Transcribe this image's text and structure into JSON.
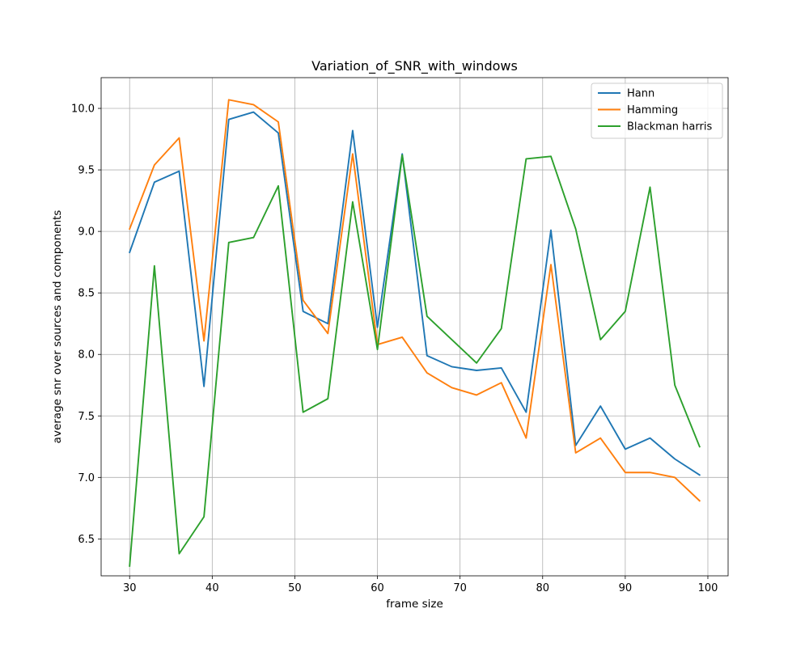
{
  "chart_data": {
    "type": "line",
    "title": "Variation_of_SNR_with_windows",
    "xlabel": "frame size",
    "ylabel": "average snr over sources and components",
    "xlim": [
      26.55,
      102.45
    ],
    "ylim": [
      6.2,
      10.25
    ],
    "xticks": [
      30,
      40,
      50,
      60,
      70,
      80,
      90,
      100
    ],
    "yticks": [
      6.5,
      7.0,
      7.5,
      8.0,
      8.5,
      9.0,
      9.5,
      10.0
    ],
    "x": [
      30,
      33,
      36,
      39,
      42,
      45,
      48,
      51,
      54,
      57,
      60,
      63,
      66,
      69,
      72,
      75,
      78,
      81,
      84,
      87,
      90,
      93,
      96,
      99
    ],
    "grid": true,
    "legend_position": "top-right",
    "series": [
      {
        "name": "Hann",
        "color": "#1f77b4",
        "values": [
          8.83,
          9.4,
          9.49,
          7.74,
          9.91,
          9.97,
          9.8,
          8.35,
          8.25,
          9.82,
          8.22,
          9.63,
          7.99,
          7.9,
          7.87,
          7.89,
          7.53,
          9.01,
          7.26,
          7.58,
          7.23,
          7.32,
          7.15,
          7.02
        ]
      },
      {
        "name": "Hamming",
        "color": "#ff7f0e",
        "values": [
          9.02,
          9.54,
          9.76,
          8.11,
          10.07,
          10.03,
          9.89,
          8.44,
          8.17,
          9.63,
          8.08,
          8.14,
          7.85,
          7.73,
          7.67,
          7.77,
          7.32,
          8.73,
          7.2,
          7.32,
          7.04,
          7.04,
          7.0,
          6.81
        ]
      },
      {
        "name": "Blackman harris",
        "color": "#2ca02c",
        "values": [
          6.28,
          8.72,
          6.38,
          6.68,
          8.91,
          8.95,
          9.37,
          7.53,
          7.64,
          9.24,
          8.04,
          9.62,
          8.31,
          8.12,
          7.93,
          8.21,
          9.59,
          9.61,
          9.02,
          8.12,
          8.35,
          9.36,
          7.75,
          7.25
        ]
      }
    ]
  }
}
